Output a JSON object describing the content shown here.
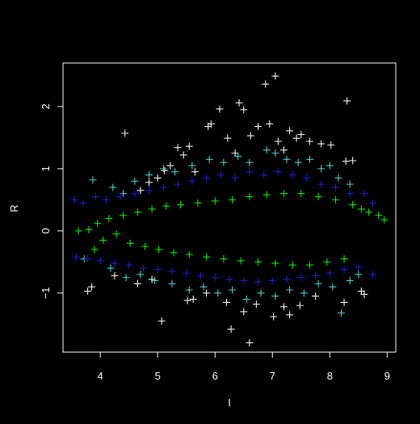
{
  "chart_data": {
    "type": "scatter",
    "title": "",
    "xlabel": "I",
    "ylabel": "R",
    "xlim": [
      3.35,
      9.15
    ],
    "ylim": [
      -1.95,
      2.7
    ],
    "x_ticks": [
      4,
      5,
      6,
      7,
      8,
      9
    ],
    "y_ticks": [
      -1,
      0,
      1,
      2
    ],
    "marker": "+",
    "grid": false,
    "legend": "none",
    "background": "#000000",
    "axis_color": "#ffffff",
    "series": [
      {
        "color": "#f2f2f2",
        "values": [
          [
            4.43,
            1.57
          ],
          [
            5.35,
            1.34
          ],
          [
            5.45,
            1.22
          ],
          [
            5.55,
            1.36
          ],
          [
            5.88,
            1.68
          ],
          [
            5.93,
            1.72
          ],
          [
            6.08,
            1.96
          ],
          [
            6.22,
            1.49
          ],
          [
            6.42,
            2.06
          ],
          [
            6.5,
            1.95
          ],
          [
            6.62,
            1.53
          ],
          [
            6.75,
            1.68
          ],
          [
            6.88,
            2.36
          ],
          [
            6.95,
            1.72
          ],
          [
            7.05,
            2.49
          ],
          [
            7.1,
            1.44
          ],
          [
            7.3,
            1.61
          ],
          [
            7.42,
            1.49
          ],
          [
            7.5,
            1.55
          ],
          [
            7.65,
            1.44
          ],
          [
            7.85,
            1.4
          ],
          [
            8.02,
            1.38
          ],
          [
            8.3,
            2.09
          ],
          [
            8.28,
            1.12
          ],
          [
            8.4,
            1.13
          ],
          [
            4.85,
            0.78
          ],
          [
            5.0,
            0.85
          ],
          [
            5.12,
            0.97
          ],
          [
            5.22,
            1.05
          ],
          [
            4.7,
            0.65
          ],
          [
            5.65,
            0.95
          ],
          [
            6.35,
            1.25
          ],
          [
            7.2,
            1.3
          ],
          [
            3.78,
            -0.97
          ],
          [
            3.85,
            -0.9
          ],
          [
            4.25,
            -0.72
          ],
          [
            4.65,
            -0.85
          ],
          [
            4.9,
            -0.78
          ],
          [
            5.07,
            -1.45
          ],
          [
            5.52,
            -1.12
          ],
          [
            5.62,
            -1.1
          ],
          [
            5.85,
            -1.0
          ],
          [
            6.2,
            -1.15
          ],
          [
            6.28,
            -1.58
          ],
          [
            6.5,
            -1.3
          ],
          [
            6.6,
            -1.8
          ],
          [
            6.72,
            -1.18
          ],
          [
            7.02,
            -1.38
          ],
          [
            7.2,
            -1.22
          ],
          [
            7.3,
            -1.35
          ],
          [
            7.48,
            -1.2
          ],
          [
            7.75,
            -1.05
          ],
          [
            8.25,
            -1.15
          ],
          [
            8.55,
            -0.97
          ],
          [
            8.6,
            -1.02
          ]
        ]
      },
      {
        "color": "#4ecece",
        "values": [
          [
            3.87,
            0.82
          ],
          [
            4.22,
            0.7
          ],
          [
            4.4,
            0.6
          ],
          [
            4.6,
            0.8
          ],
          [
            4.85,
            0.9
          ],
          [
            5.1,
            1.0
          ],
          [
            5.3,
            0.95
          ],
          [
            5.6,
            1.05
          ],
          [
            5.9,
            1.15
          ],
          [
            6.15,
            1.1
          ],
          [
            6.4,
            1.2
          ],
          [
            6.6,
            1.1
          ],
          [
            6.9,
            1.3
          ],
          [
            7.05,
            1.25
          ],
          [
            7.25,
            1.15
          ],
          [
            7.45,
            1.1
          ],
          [
            7.65,
            1.15
          ],
          [
            7.85,
            1.0
          ],
          [
            8.0,
            1.05
          ],
          [
            8.15,
            0.85
          ],
          [
            8.35,
            0.75
          ],
          [
            3.72,
            -0.45
          ],
          [
            4.18,
            -0.6
          ],
          [
            4.45,
            -0.75
          ],
          [
            4.7,
            -0.7
          ],
          [
            4.95,
            -0.8
          ],
          [
            5.25,
            -0.85
          ],
          [
            5.55,
            -0.95
          ],
          [
            5.8,
            -0.9
          ],
          [
            6.05,
            -1.0
          ],
          [
            6.3,
            -0.95
          ],
          [
            6.55,
            -1.1
          ],
          [
            6.8,
            -1.0
          ],
          [
            7.05,
            -1.05
          ],
          [
            7.3,
            -0.95
          ],
          [
            7.55,
            -1.0
          ],
          [
            7.8,
            -0.85
          ],
          [
            8.05,
            -0.9
          ],
          [
            8.2,
            -1.32
          ],
          [
            8.35,
            -0.8
          ],
          [
            8.5,
            -0.7
          ]
        ]
      },
      {
        "color": "#1e1ed2",
        "values": [
          [
            3.55,
            0.5
          ],
          [
            3.7,
            0.45
          ],
          [
            3.92,
            0.55
          ],
          [
            4.1,
            0.5
          ],
          [
            4.35,
            0.55
          ],
          [
            4.6,
            0.6
          ],
          [
            4.85,
            0.65
          ],
          [
            5.1,
            0.7
          ],
          [
            5.35,
            0.75
          ],
          [
            5.6,
            0.8
          ],
          [
            5.85,
            0.85
          ],
          [
            6.1,
            0.9
          ],
          [
            6.35,
            0.85
          ],
          [
            6.6,
            0.95
          ],
          [
            6.85,
            0.9
          ],
          [
            7.1,
            0.95
          ],
          [
            7.35,
            0.9
          ],
          [
            7.6,
            0.85
          ],
          [
            7.85,
            0.75
          ],
          [
            8.1,
            0.7
          ],
          [
            8.35,
            0.6
          ],
          [
            8.6,
            0.6
          ],
          [
            8.75,
            0.45
          ],
          [
            3.58,
            -0.42
          ],
          [
            3.78,
            -0.45
          ],
          [
            4.0,
            -0.48
          ],
          [
            4.25,
            -0.52
          ],
          [
            4.5,
            -0.55
          ],
          [
            4.75,
            -0.6
          ],
          [
            5.0,
            -0.62
          ],
          [
            5.25,
            -0.65
          ],
          [
            5.5,
            -0.68
          ],
          [
            5.75,
            -0.72
          ],
          [
            6.0,
            -0.75
          ],
          [
            6.25,
            -0.78
          ],
          [
            6.5,
            -0.8
          ],
          [
            6.75,
            -0.82
          ],
          [
            7.0,
            -0.8
          ],
          [
            7.25,
            -0.78
          ],
          [
            7.5,
            -0.75
          ],
          [
            7.75,
            -0.72
          ],
          [
            8.0,
            -0.68
          ],
          [
            8.25,
            -0.62
          ],
          [
            8.5,
            -0.58
          ],
          [
            8.75,
            -0.7
          ]
        ]
      },
      {
        "color": "#00ee00",
        "values": [
          [
            3.62,
            0.0
          ],
          [
            3.8,
            0.02
          ],
          [
            3.95,
            0.12
          ],
          [
            4.05,
            -0.15
          ],
          [
            4.15,
            0.2
          ],
          [
            4.28,
            -0.05
          ],
          [
            4.4,
            0.25
          ],
          [
            4.52,
            -0.2
          ],
          [
            4.65,
            0.3
          ],
          [
            4.78,
            -0.25
          ],
          [
            4.9,
            0.35
          ],
          [
            5.02,
            -0.3
          ],
          [
            5.15,
            0.4
          ],
          [
            5.28,
            -0.35
          ],
          [
            5.4,
            0.42
          ],
          [
            5.55,
            -0.38
          ],
          [
            5.7,
            0.45
          ],
          [
            5.85,
            -0.42
          ],
          [
            6.0,
            0.48
          ],
          [
            6.15,
            -0.45
          ],
          [
            6.3,
            0.5
          ],
          [
            6.45,
            -0.48
          ],
          [
            6.6,
            0.55
          ],
          [
            6.75,
            -0.5
          ],
          [
            6.9,
            0.58
          ],
          [
            7.05,
            -0.52
          ],
          [
            7.2,
            0.6
          ],
          [
            7.35,
            -0.55
          ],
          [
            7.5,
            0.6
          ],
          [
            7.65,
            -0.55
          ],
          [
            7.8,
            0.55
          ],
          [
            7.95,
            -0.5
          ],
          [
            8.1,
            0.5
          ],
          [
            8.25,
            -0.45
          ],
          [
            8.4,
            0.42
          ],
          [
            8.55,
            0.35
          ],
          [
            8.68,
            0.3
          ],
          [
            8.85,
            0.25
          ],
          [
            8.95,
            0.18
          ],
          [
            3.9,
            -0.3
          ]
        ]
      }
    ]
  }
}
